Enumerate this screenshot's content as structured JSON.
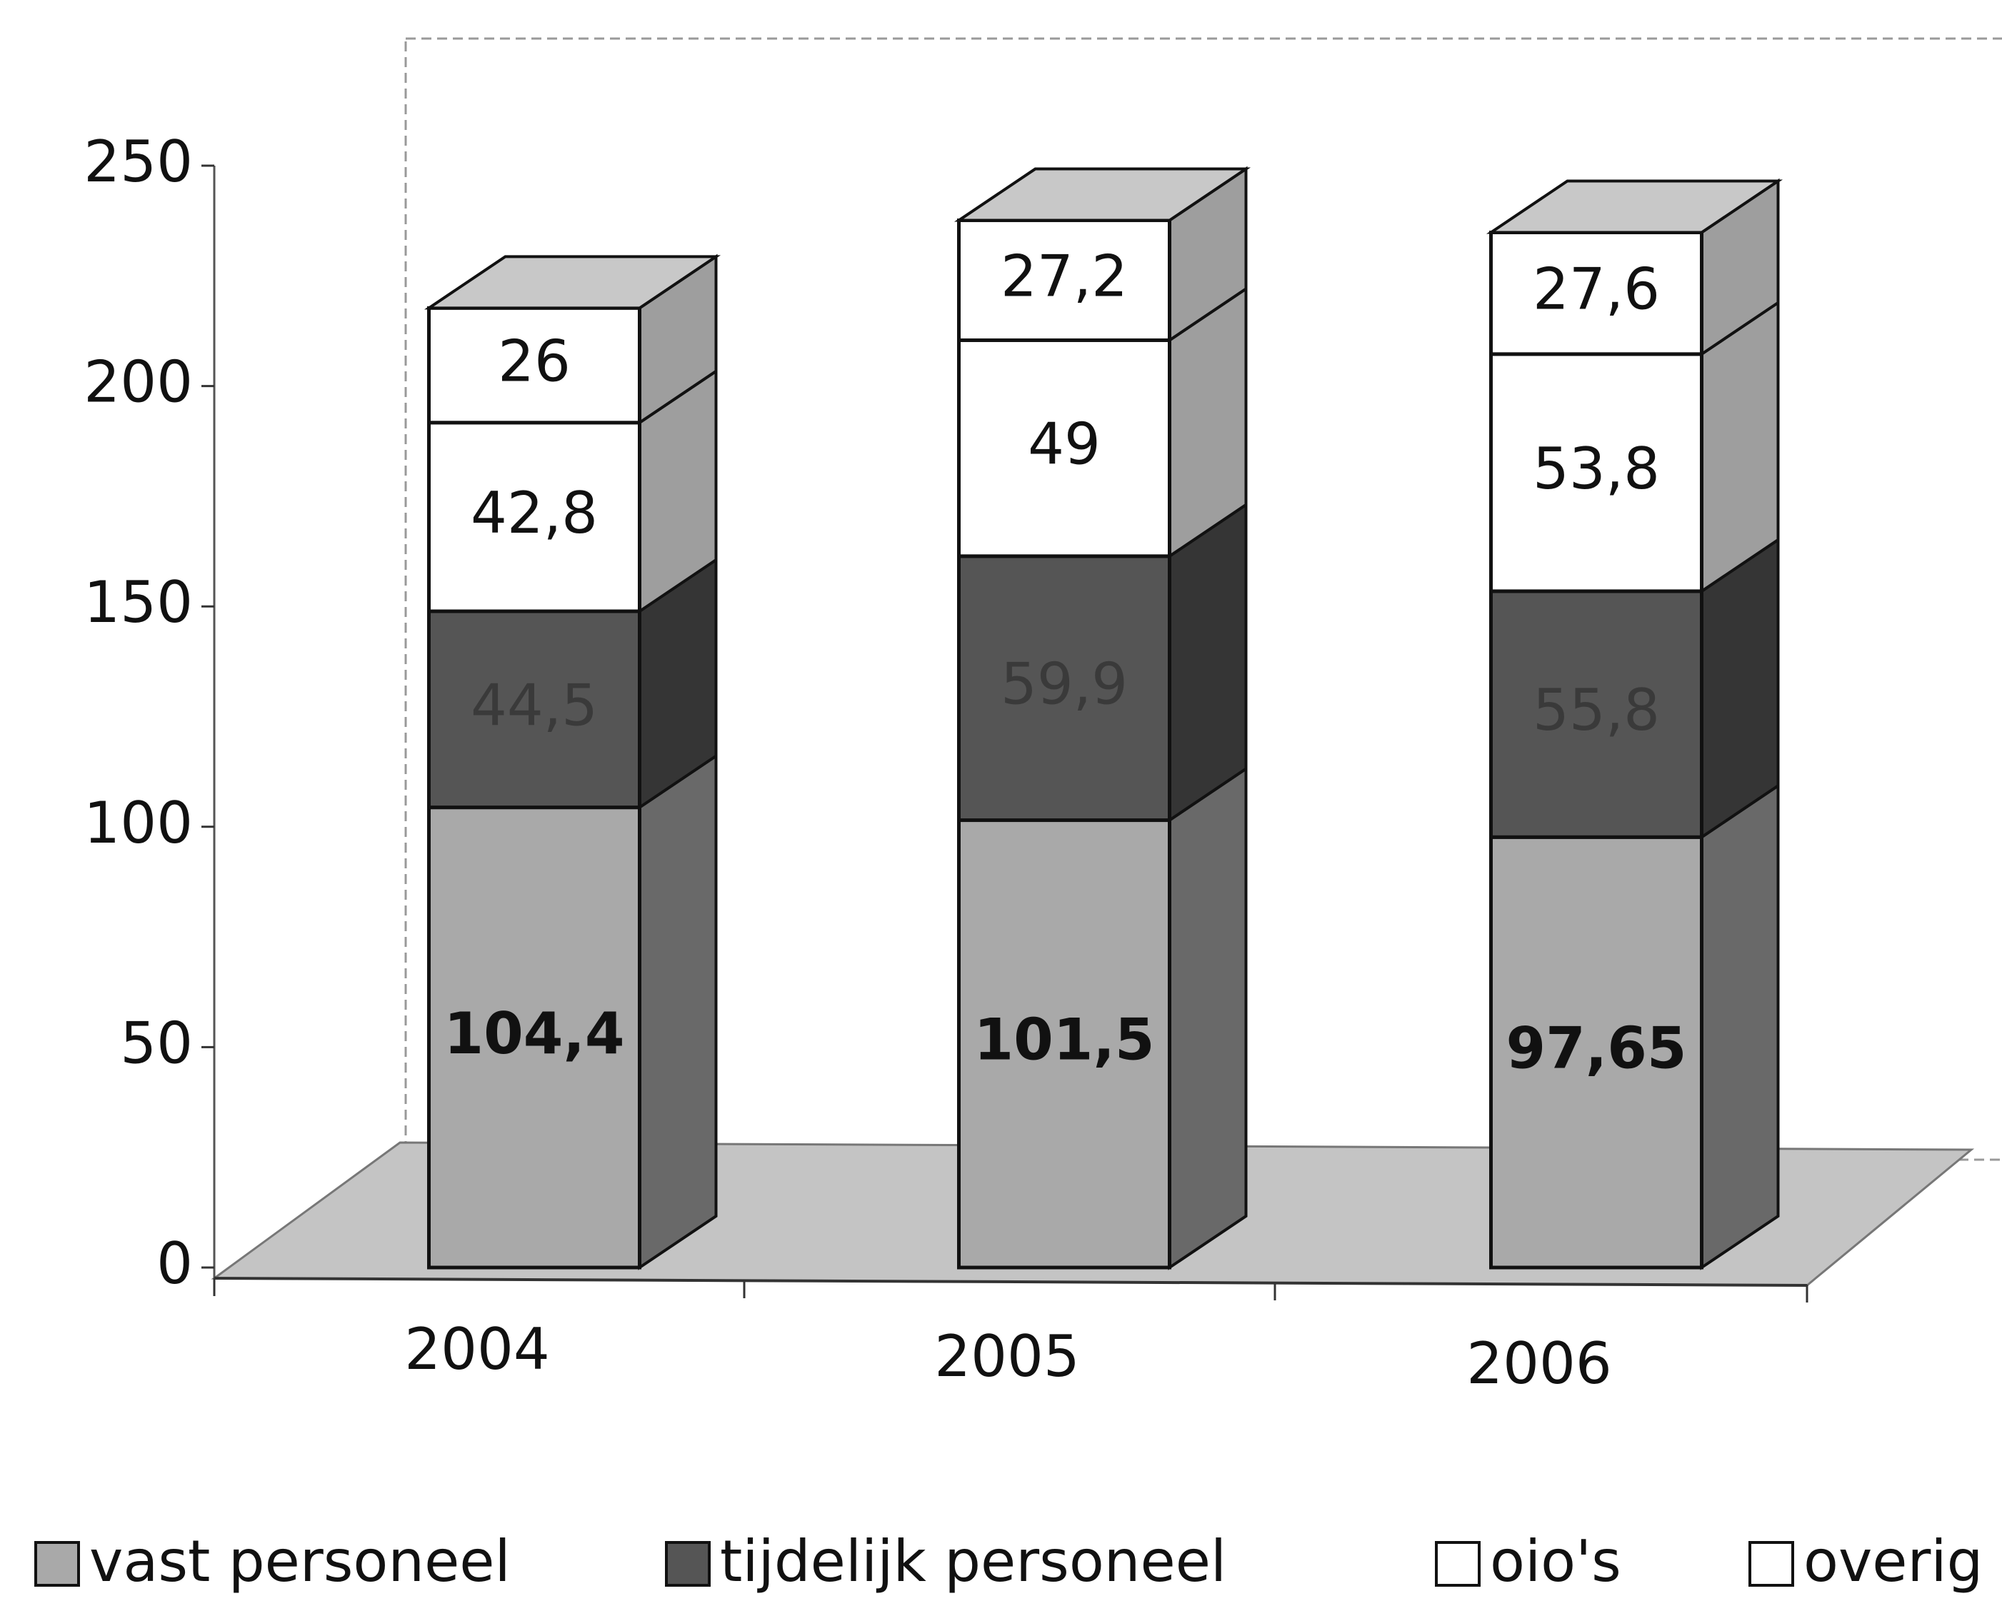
{
  "chart_data": {
    "type": "bar3d_stacked",
    "categories": [
      "2004",
      "2005",
      "2006"
    ],
    "series": [
      {
        "name": "vast personeel",
        "color": "#a9a9a9",
        "values": [
          104.4,
          101.5,
          97.65
        ],
        "value_labels": [
          "104,4",
          "101,5",
          "97,65"
        ]
      },
      {
        "name": "tijdelijk personeel",
        "color": "#555555",
        "values": [
          44.5,
          59.9,
          55.8
        ],
        "value_labels": [
          "44,5",
          "59,9",
          "55,8"
        ]
      },
      {
        "name": "oio's",
        "color": "#ffffff",
        "values": [
          42.8,
          49,
          53.8
        ],
        "value_labels": [
          "42,8",
          "49",
          "53,8"
        ]
      },
      {
        "name": "overig",
        "color": "#ffffff",
        "values": [
          26,
          27.2,
          27.6
        ],
        "value_labels": [
          "26",
          "27,2",
          "27,6"
        ]
      }
    ],
    "ylim": [
      0,
      250
    ],
    "yticks": [
      0,
      50,
      100,
      150,
      200,
      250
    ],
    "legend": "bottom"
  }
}
